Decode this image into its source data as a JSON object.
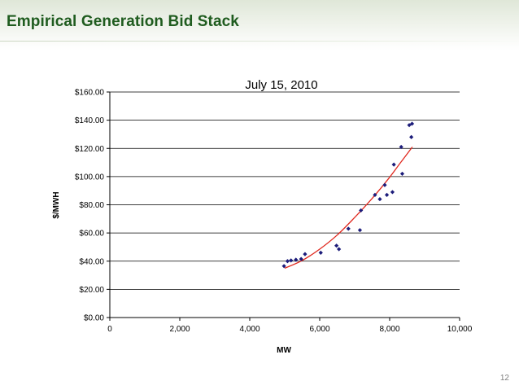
{
  "slide": {
    "title": "Empirical Generation Bid Stack",
    "page_number": "12"
  },
  "chart_data": {
    "type": "scatter",
    "title": "July 15, 2010",
    "xlabel": "MW",
    "ylabel": "$/MWH",
    "xlim": [
      0,
      10000
    ],
    "ylim": [
      0,
      160
    ],
    "x_ticks": [
      0,
      2000,
      4000,
      6000,
      8000,
      10000
    ],
    "x_tick_labels": [
      "0",
      "2,000",
      "4,000",
      "6,000",
      "8,000",
      "10,000"
    ],
    "y_ticks": [
      0,
      20,
      40,
      60,
      80,
      100,
      120,
      140,
      160
    ],
    "y_tick_labels": [
      "$0.00",
      "$20.00",
      "$40.00",
      "$60.00",
      "$80.00",
      "$100.00",
      "$120.00",
      "$140.00",
      "$160.00"
    ],
    "grid": "horizontal",
    "legend": "none",
    "colors": {
      "points": "#1c1c7a",
      "trendline": "#e0281e",
      "axis": "#000000"
    },
    "series": [
      {
        "type": "scatter",
        "points": [
          [
            4980,
            36.5
          ],
          [
            5080,
            40
          ],
          [
            5180,
            40.5
          ],
          [
            5320,
            41
          ],
          [
            5470,
            41.5
          ],
          [
            5580,
            45
          ],
          [
            6030,
            46
          ],
          [
            6480,
            51
          ],
          [
            6550,
            48.5
          ],
          [
            6820,
            63
          ],
          [
            7150,
            62
          ],
          [
            7180,
            76
          ],
          [
            7580,
            87
          ],
          [
            7720,
            84
          ],
          [
            7860,
            94
          ],
          [
            7920,
            87
          ],
          [
            8080,
            89
          ],
          [
            8120,
            108.5
          ],
          [
            8330,
            121
          ],
          [
            8360,
            102
          ],
          [
            8560,
            136.5
          ],
          [
            8640,
            137.5
          ],
          [
            8620,
            128
          ]
        ]
      },
      {
        "type": "trendline",
        "points": [
          [
            5000,
            35
          ],
          [
            5500,
            40.5
          ],
          [
            6000,
            48.5
          ],
          [
            6500,
            58.5
          ],
          [
            7000,
            71
          ],
          [
            7500,
            84.5
          ],
          [
            8000,
            99.5
          ],
          [
            8300,
            109.5
          ],
          [
            8650,
            121
          ]
        ]
      }
    ]
  }
}
